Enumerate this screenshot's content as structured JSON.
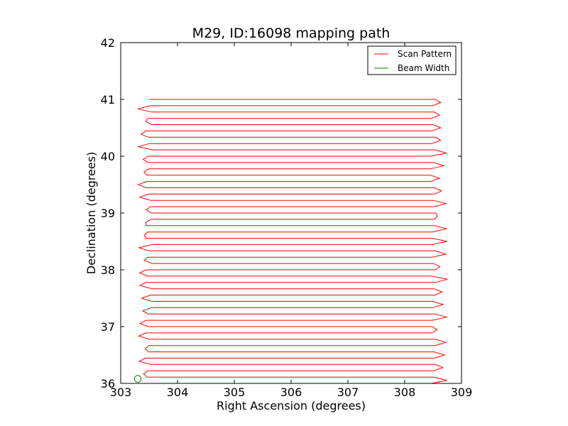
{
  "chart_data": {
    "type": "line",
    "title": "M29, ID:16098 mapping path",
    "xlabel": "Right Ascension (degrees)",
    "ylabel": "Declination (degrees)",
    "xlim": [
      303,
      309
    ],
    "ylim": [
      36,
      42
    ],
    "xticks": [
      "303",
      "304",
      "305",
      "306",
      "307",
      "308",
      "309"
    ],
    "yticks": [
      "36",
      "37",
      "38",
      "39",
      "40",
      "41",
      "42"
    ],
    "legend_position": "top-right",
    "legend": [
      {
        "label": "Scan Pattern",
        "color": "#ff0000"
      },
      {
        "label": "Beam Width",
        "color": "#008000"
      }
    ],
    "series": [
      {
        "name": "Scan Pattern",
        "color": "#ff0000",
        "style": "boustrophedon raster",
        "ra_left": 303.5,
        "ra_right": 308.5,
        "turnaround_min": 303.3,
        "turnaround_max": 308.75,
        "dec_start": 36.0,
        "dec_end": 41.0,
        "row_spacing": 0.111
      },
      {
        "name": "Beam Width",
        "color": "#008000",
        "marker": "circle",
        "ra": 303.3,
        "dec": 36.08,
        "radius_deg": 0.06
      }
    ]
  }
}
